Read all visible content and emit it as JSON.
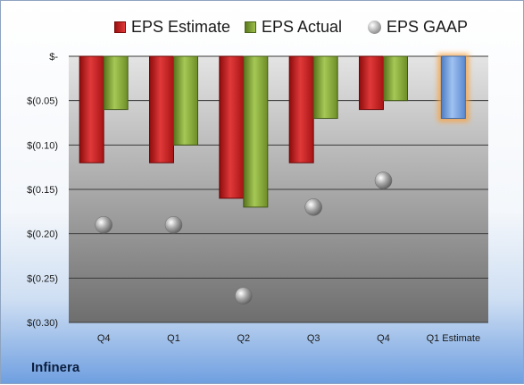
{
  "company": "Infinera",
  "chart_data": {
    "type": "bar",
    "categories": [
      "Q4",
      "Q1",
      "Q2",
      "Q3",
      "Q4",
      "Q1 Estimate"
    ],
    "series": [
      {
        "name": "EPS Estimate",
        "values": [
          -0.12,
          -0.12,
          -0.16,
          -0.12,
          -0.06,
          null
        ],
        "color": "#c8201f"
      },
      {
        "name": "EPS Actual",
        "values": [
          -0.06,
          -0.1,
          -0.17,
          -0.07,
          -0.05,
          null
        ],
        "color": "#8bb13b"
      },
      {
        "name": "EPS GAAP",
        "values": [
          -0.19,
          -0.19,
          -0.27,
          -0.17,
          -0.14,
          null
        ],
        "color": "#9a9a9a"
      },
      {
        "name": "",
        "values": [
          null,
          null,
          null,
          null,
          null,
          -0.07
        ],
        "color": "#6f9fe0"
      }
    ],
    "y_ticks": [
      {
        "value": 0,
        "label": "$-"
      },
      {
        "value": -0.05,
        "label": "$(0.05)"
      },
      {
        "value": -0.1,
        "label": "$(0.10)"
      },
      {
        "value": -0.15,
        "label": "$(0.15)"
      },
      {
        "value": -0.2,
        "label": "$(0.20)"
      },
      {
        "value": -0.25,
        "label": "$(0.25)"
      },
      {
        "value": -0.3,
        "label": "$(0.30)"
      }
    ],
    "ylim": [
      -0.3,
      0
    ],
    "grid": true,
    "legend_position": "top"
  }
}
